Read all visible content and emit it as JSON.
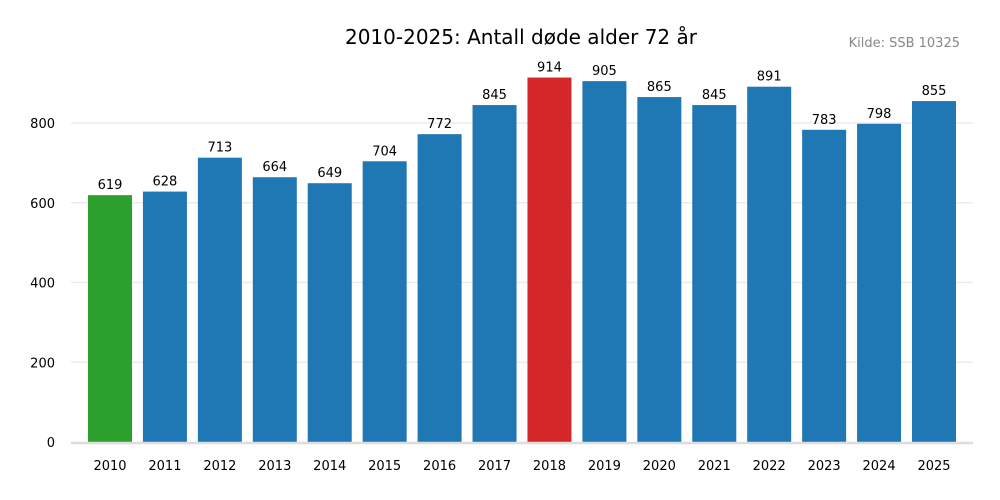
{
  "chart_data": {
    "type": "bar",
    "title": "2010-2025: Antall døde alder 72 år",
    "source": "Kilde: SSB 10325",
    "categories": [
      "2010",
      "2011",
      "2012",
      "2013",
      "2014",
      "2015",
      "2016",
      "2017",
      "2018",
      "2019",
      "2020",
      "2021",
      "2022",
      "2023",
      "2024",
      "2025"
    ],
    "values": [
      619,
      628,
      713,
      664,
      649,
      704,
      772,
      845,
      914,
      905,
      865,
      845,
      891,
      783,
      798,
      855
    ],
    "bar_colors": [
      "#2ca02c",
      "#1f77b4",
      "#1f77b4",
      "#1f77b4",
      "#1f77b4",
      "#1f77b4",
      "#1f77b4",
      "#1f77b4",
      "#d62728",
      "#1f77b4",
      "#1f77b4",
      "#1f77b4",
      "#1f77b4",
      "#1f77b4",
      "#1f77b4",
      "#1f77b4"
    ],
    "yticks": [
      "0",
      "200",
      "400",
      "600",
      "800"
    ],
    "ylim": [
      0,
      960
    ],
    "grid": true,
    "xlabel": "",
    "ylabel": ""
  }
}
